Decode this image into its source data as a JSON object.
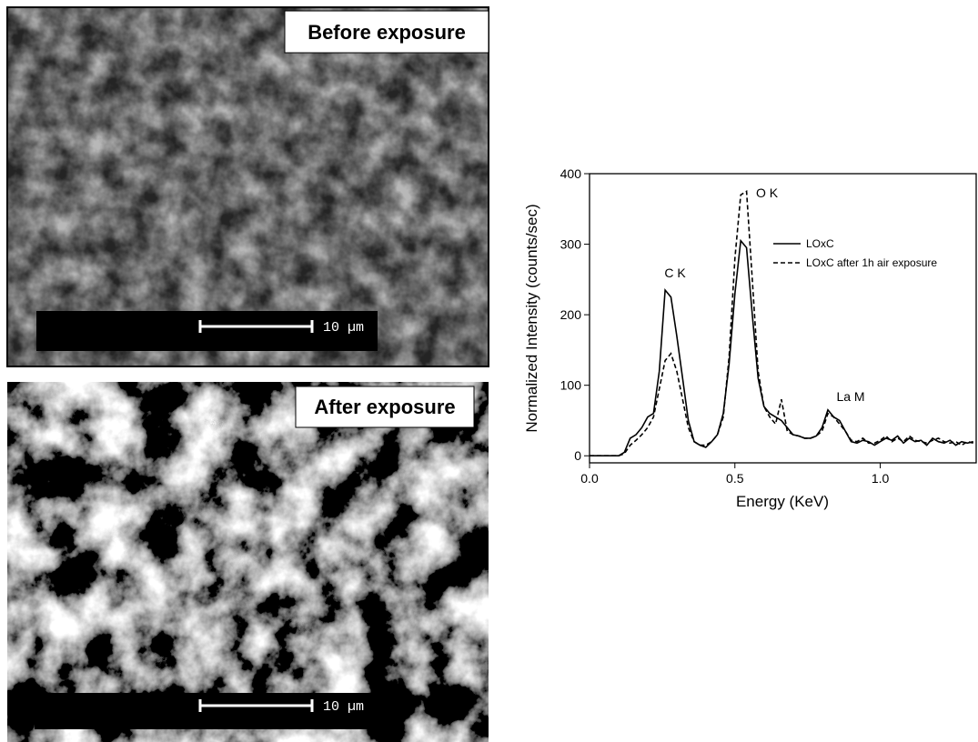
{
  "images": [
    {
      "label": "Before exposure",
      "scale": "10 µm"
    },
    {
      "label": "After exposure",
      "scale": "10 µm"
    }
  ],
  "chart_data": {
    "type": "line",
    "x_label": "Energy (KeV)",
    "y_label": "Normalized Intensity (counts/sec)",
    "xlim": [
      0,
      1.33
    ],
    "ylim": [
      -10,
      400
    ],
    "xticks": [
      {
        "value": 0,
        "label": "0.0"
      },
      {
        "value": 0.5,
        "label": "0.5"
      },
      {
        "value": 1,
        "label": "1.0"
      }
    ],
    "yticks": [
      0,
      100,
      200,
      300,
      400
    ],
    "legend": "upper right",
    "grid": false,
    "annotations": [
      "C K",
      "O K",
      "La M"
    ],
    "x": [
      0,
      0.02,
      0.04,
      0.06,
      0.08,
      0.1,
      0.12,
      0.14,
      0.16,
      0.18,
      0.2,
      0.22,
      0.24,
      0.26,
      0.28,
      0.3,
      0.32,
      0.34,
      0.36,
      0.38,
      0.4,
      0.42,
      0.44,
      0.46,
      0.48,
      0.5,
      0.52,
      0.54,
      0.56,
      0.58,
      0.6,
      0.62,
      0.64,
      0.66,
      0.68,
      0.7,
      0.72,
      0.74,
      0.76,
      0.78,
      0.8,
      0.82,
      0.84,
      0.86,
      0.88,
      0.9,
      0.92,
      0.94,
      0.96,
      0.98,
      1,
      1.02,
      1.04,
      1.06,
      1.08,
      1.1,
      1.12,
      1.14,
      1.16,
      1.18,
      1.2,
      1.22,
      1.24,
      1.26,
      1.28,
      1.3,
      1.32
    ],
    "series": [
      {
        "name": "LOxC",
        "color": "#000000",
        "line_style": "solid",
        "values": [
          0,
          0,
          0,
          0,
          0,
          0,
          5,
          25,
          30,
          40,
          55,
          60,
          120,
          235,
          225,
          170,
          110,
          50,
          20,
          15,
          12,
          20,
          30,
          60,
          130,
          230,
          305,
          295,
          200,
          110,
          70,
          60,
          55,
          50,
          40,
          30,
          28,
          25,
          25,
          28,
          40,
          65,
          55,
          50,
          35,
          20,
          18,
          22,
          20,
          15,
          20,
          25,
          22,
          28,
          18,
          25,
          20,
          22,
          15,
          25,
          20,
          18,
          22,
          15,
          20,
          18,
          20
        ]
      },
      {
        "name": "LOxC after 1h air exposure",
        "color": "#000000",
        "line_style": "dashed",
        "values": [
          0,
          0,
          0,
          0,
          0,
          0,
          3,
          15,
          22,
          30,
          40,
          55,
          95,
          135,
          145,
          120,
          80,
          40,
          20,
          15,
          15,
          20,
          30,
          55,
          140,
          280,
          370,
          375,
          250,
          120,
          70,
          55,
          45,
          80,
          35,
          30,
          28,
          25,
          25,
          28,
          35,
          60,
          55,
          45,
          35,
          22,
          20,
          25,
          18,
          18,
          22,
          28,
          20,
          25,
          20,
          28,
          22,
          20,
          18,
          22,
          25,
          20,
          18,
          20,
          15,
          20,
          18
        ]
      }
    ]
  }
}
